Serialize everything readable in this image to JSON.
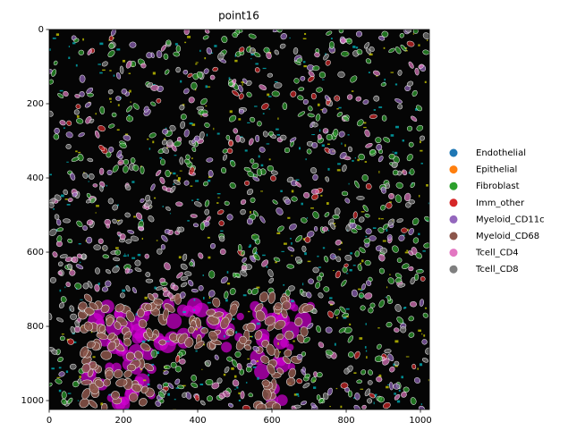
{
  "chart_data": {
    "type": "image",
    "title": "point16",
    "xlim": [
      0,
      1024
    ],
    "ylim": [
      1024,
      0
    ],
    "xticks": [
      0,
      200,
      400,
      600,
      800,
      1000
    ],
    "yticks": [
      0,
      200,
      400,
      600,
      800,
      1000
    ],
    "legend_position": "right",
    "legend": [
      {
        "name": "Endothelial",
        "color": "#1f77b4"
      },
      {
        "name": "Epithelial",
        "color": "#ff7f0e"
      },
      {
        "name": "Fibroblast",
        "color": "#2ca02c"
      },
      {
        "name": "Imm_other",
        "color": "#d62728"
      },
      {
        "name": "Myeloid_CD11c",
        "color": "#9467bd"
      },
      {
        "name": "Myeloid_CD68",
        "color": "#8c564b"
      },
      {
        "name": "Tcell_CD4",
        "color": "#e377c2"
      },
      {
        "name": "Tcell_CD8",
        "color": "#7f7f7f"
      }
    ]
  }
}
